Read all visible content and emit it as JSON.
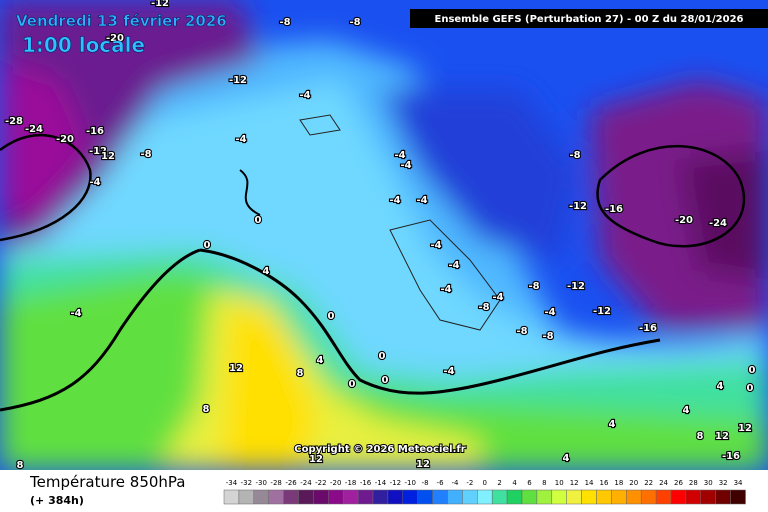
{
  "header": {
    "date": "Vendredi 13 février 2026",
    "time": "1:00 locale",
    "run": "Ensemble GEFS  (Perturbation 27)  -  00 Z du 28/01/2026"
  },
  "copyright": "Copyright © 2026 Meteociel.fr",
  "footer": {
    "title": "Température 850hPa",
    "lead": "(+ 384h)"
  },
  "contour_labels": [
    -12,
    -8,
    -8,
    -20,
    -12,
    -4,
    -28,
    -24,
    -20,
    -16,
    -12,
    12,
    -8,
    -4,
    -4,
    -4,
    -8,
    -4,
    -4,
    -4,
    -12,
    -16,
    -20,
    -24,
    0,
    0,
    -4,
    -4,
    4,
    -4,
    -4,
    -8,
    -12,
    -8,
    -4,
    -12,
    -16,
    -4,
    0,
    -8,
    -8,
    0,
    4,
    12,
    8,
    0,
    0,
    -4,
    4,
    0,
    0,
    8,
    4,
    4,
    12,
    8,
    12,
    12,
    12,
    4,
    -16,
    8
  ],
  "colorbar": {
    "ticks": [
      -34,
      -32,
      -30,
      -28,
      -26,
      -24,
      -22,
      -20,
      -18,
      -16,
      -14,
      -12,
      -10,
      -8,
      -6,
      -4,
      -2,
      0,
      2,
      4,
      6,
      8,
      10,
      12,
      14,
      16,
      18,
      20,
      22,
      24,
      26,
      28,
      30,
      32,
      34
    ],
    "colors": [
      "#d4d4d4",
      "#b4b4b4",
      "#968896",
      "#a070a0",
      "#7a3a7a",
      "#5a1a5a",
      "#6a0a6a",
      "#8a0a8a",
      "#a020a0",
      "#701a90",
      "#3020a0",
      "#1010c0",
      "#0020e0",
      "#0050f0",
      "#2080ff",
      "#40b0ff",
      "#60d0ff",
      "#80f0ff",
      "#40e0a0",
      "#20d060",
      "#60e040",
      "#a0f040",
      "#d0ff40",
      "#f0f040",
      "#ffe000",
      "#ffc800",
      "#ffb000",
      "#ff9000",
      "#ff7000",
      "#ff4000",
      "#ff0000",
      "#d00000",
      "#a00000",
      "#700000",
      "#400000"
    ]
  }
}
